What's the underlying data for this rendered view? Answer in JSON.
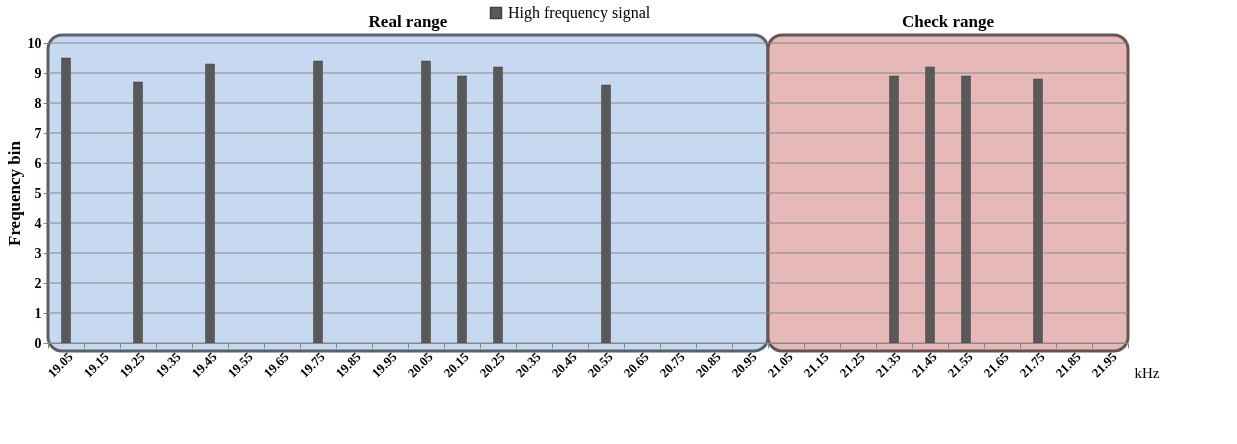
{
  "chart_data": {
    "type": "bar",
    "categories": [
      "19.05",
      "19.15",
      "19.25",
      "19.35",
      "19.45",
      "19.55",
      "19.65",
      "19.75",
      "19.85",
      "19.95",
      "20.05",
      "20.15",
      "20.25",
      "20.35",
      "20.45",
      "20.55",
      "20.65",
      "20.75",
      "20.85",
      "20.95",
      "21.05",
      "21.15",
      "21.25",
      "21.35",
      "21.45",
      "21.55",
      "21.65",
      "21.75",
      "21.85",
      "21.95"
    ],
    "series": [
      {
        "name": "High frequency signal",
        "color": "#595959",
        "values": [
          9.5,
          null,
          8.7,
          null,
          9.3,
          null,
          null,
          9.4,
          null,
          null,
          9.4,
          8.9,
          9.2,
          null,
          null,
          8.6,
          null,
          null,
          null,
          null,
          null,
          null,
          null,
          8.9,
          9.2,
          8.9,
          null,
          8.8,
          null,
          null
        ]
      }
    ],
    "xlabel": "kHz",
    "ylabel": "Frequency bin",
    "ylim": [
      0,
      10
    ],
    "yticks": [
      0,
      1,
      2,
      3,
      4,
      5,
      6,
      7,
      8,
      9,
      10
    ],
    "grid": "y",
    "legend": "top",
    "bands": [
      {
        "axis": "x",
        "from": "19.05",
        "to": "20.95",
        "label": "Real range",
        "color": "#c6d9f1"
      },
      {
        "axis": "x",
        "from": "21.05",
        "to": "21.95",
        "label": "Check range",
        "color": "#e6b9b8"
      }
    ]
  }
}
